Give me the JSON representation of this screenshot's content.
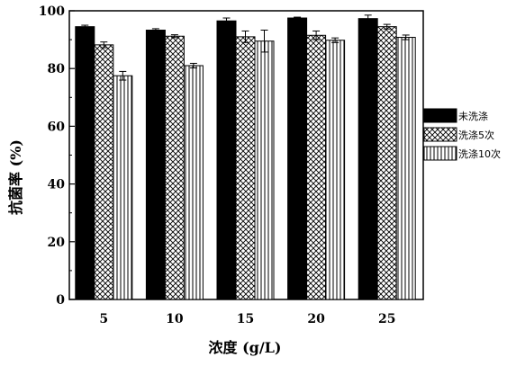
{
  "chart_data": {
    "type": "bar",
    "title": "",
    "xlabel": "浓度 (g/L)",
    "ylabel": "抗菌率 (%)",
    "categories": [
      "5",
      "10",
      "15",
      "20",
      "25"
    ],
    "ylim": [
      0,
      100
    ],
    "yticks": [
      0,
      20,
      40,
      60,
      80,
      100
    ],
    "grid": false,
    "legend_position": "right",
    "series": [
      {
        "name": "未洗涤",
        "fill": "solid-black",
        "values": [
          94.5,
          93.3,
          96.5,
          97.5,
          97.3
        ],
        "errors": [
          0.5,
          0.5,
          1.0,
          0.3,
          1.2
        ]
      },
      {
        "name": "洗涤5次",
        "fill": "crosshatch",
        "values": [
          88.2,
          91.2,
          91.0,
          91.5,
          94.5
        ],
        "errors": [
          1.0,
          0.5,
          2.0,
          1.5,
          0.8
        ]
      },
      {
        "name": "洗涤10次",
        "fill": "vertical-lines",
        "values": [
          77.5,
          81.0,
          89.5,
          89.8,
          90.8
        ],
        "errors": [
          1.5,
          0.8,
          3.8,
          0.8,
          0.8
        ]
      }
    ]
  }
}
